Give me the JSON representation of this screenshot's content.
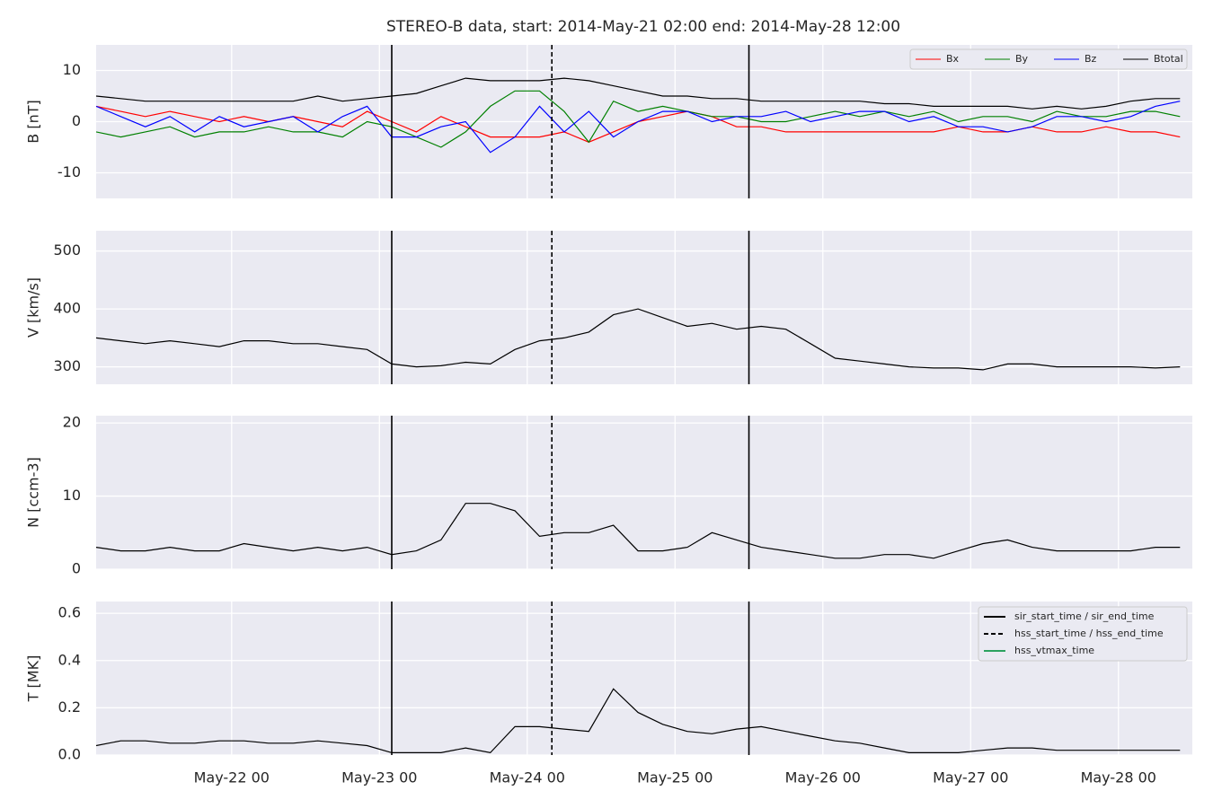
{
  "chart_data": [
    {
      "type": "line",
      "title": "STEREO-B data, start: 2014-May-21 02:00  end: 2014-May-28 12:00",
      "ylabel": "B [nT]",
      "x": [
        "May-21 02",
        "May-21 06",
        "May-21 10",
        "May-21 14",
        "May-21 18",
        "May-21 22",
        "May-22 02",
        "May-22 06",
        "May-22 10",
        "May-22 14",
        "May-22 18",
        "May-22 22",
        "May-23 02",
        "May-23 06",
        "May-23 10",
        "May-23 14",
        "May-23 18",
        "May-23 22",
        "May-24 02",
        "May-24 06",
        "May-24 10",
        "May-24 14",
        "May-24 18",
        "May-24 22",
        "May-25 02",
        "May-25 06",
        "May-25 10",
        "May-25 14",
        "May-25 18",
        "May-25 22",
        "May-26 02",
        "May-26 06",
        "May-26 10",
        "May-26 14",
        "May-26 18",
        "May-26 22",
        "May-27 02",
        "May-27 06",
        "May-27 10",
        "May-27 14",
        "May-27 18",
        "May-27 22",
        "May-28 02",
        "May-28 06",
        "May-28 10"
      ],
      "series": [
        {
          "name": "Bx",
          "color": "#ff0000",
          "values": [
            3,
            2,
            1,
            2,
            1,
            0,
            1,
            0,
            1,
            0,
            -1,
            2,
            0,
            -2,
            1,
            -1,
            -3,
            -3,
            -3,
            -2,
            -4,
            -2,
            0,
            1,
            2,
            1,
            -1,
            -1,
            -2,
            -2,
            -2,
            -2,
            -2,
            -2,
            -2,
            -1,
            -2,
            -2,
            -1,
            -2,
            -2,
            -1,
            -2,
            -2,
            -3
          ]
        },
        {
          "name": "By",
          "color": "#008000",
          "values": [
            -2,
            -3,
            -2,
            -1,
            -3,
            -2,
            -2,
            -1,
            -2,
            -2,
            -3,
            0,
            -1,
            -3,
            -5,
            -2,
            3,
            6,
            6,
            2,
            -4,
            4,
            2,
            3,
            2,
            1,
            1,
            0,
            0,
            1,
            2,
            1,
            2,
            1,
            2,
            0,
            1,
            1,
            0,
            2,
            1,
            1,
            2,
            2,
            1
          ]
        },
        {
          "name": "Bz",
          "color": "#0000ff",
          "values": [
            3,
            1,
            -1,
            1,
            -2,
            1,
            -1,
            0,
            1,
            -2,
            1,
            3,
            -3,
            -3,
            -1,
            0,
            -6,
            -3,
            3,
            -2,
            2,
            -3,
            0,
            2,
            2,
            0,
            1,
            1,
            2,
            0,
            1,
            2,
            2,
            0,
            1,
            -1,
            -1,
            -2,
            -1,
            1,
            1,
            0,
            1,
            3,
            4
          ]
        },
        {
          "name": "Btotal",
          "color": "#000000",
          "values": [
            5,
            4.5,
            4,
            4,
            4,
            4,
            4,
            4,
            4,
            5,
            4,
            4.5,
            5,
            5.5,
            7,
            8.5,
            8,
            8,
            8,
            8.5,
            8,
            7,
            6,
            5,
            5,
            4.5,
            4.5,
            4,
            4,
            4,
            4,
            4,
            3.5,
            3.5,
            3,
            3,
            3,
            3,
            2.5,
            3,
            2.5,
            3,
            4,
            4.5,
            4.5
          ]
        }
      ],
      "xlim": [
        "May-21 02",
        "May-28 12"
      ],
      "xticks": [
        "May-22 00",
        "May-23 00",
        "May-24 00",
        "May-25 00",
        "May-26 00",
        "May-27 00",
        "May-28 00"
      ],
      "ylim": [
        -15,
        15
      ],
      "yticks": [
        -10,
        0,
        10
      ],
      "grid": true,
      "legend": "upper right"
    },
    {
      "type": "line",
      "ylabel": "V [km/s]",
      "x": [
        "May-21 02",
        "May-21 06",
        "May-21 10",
        "May-21 14",
        "May-21 18",
        "May-21 22",
        "May-22 02",
        "May-22 06",
        "May-22 10",
        "May-22 14",
        "May-22 18",
        "May-22 22",
        "May-23 02",
        "May-23 06",
        "May-23 10",
        "May-23 14",
        "May-23 18",
        "May-23 22",
        "May-24 02",
        "May-24 06",
        "May-24 10",
        "May-24 14",
        "May-24 18",
        "May-24 22",
        "May-25 02",
        "May-25 06",
        "May-25 10",
        "May-25 14",
        "May-25 18",
        "May-25 22",
        "May-26 02",
        "May-26 06",
        "May-26 10",
        "May-26 14",
        "May-26 18",
        "May-26 22",
        "May-27 02",
        "May-27 06",
        "May-27 10",
        "May-27 14",
        "May-27 18",
        "May-27 22",
        "May-28 02",
        "May-28 06",
        "May-28 10"
      ],
      "series": [
        {
          "name": "V",
          "color": "#000000",
          "values": [
            350,
            345,
            340,
            345,
            340,
            335,
            345,
            345,
            340,
            340,
            335,
            330,
            305,
            300,
            302,
            308,
            305,
            330,
            345,
            350,
            360,
            390,
            400,
            385,
            370,
            375,
            365,
            370,
            365,
            340,
            315,
            310,
            305,
            300,
            298,
            298,
            295,
            305,
            305,
            300,
            300,
            300,
            300,
            298,
            300
          ]
        }
      ],
      "xlim": [
        "May-21 02",
        "May-28 12"
      ],
      "xticks": [
        "May-22 00",
        "May-23 00",
        "May-24 00",
        "May-25 00",
        "May-26 00",
        "May-27 00",
        "May-28 00"
      ],
      "ylim": [
        270,
        535
      ],
      "yticks": [
        300,
        400,
        500
      ],
      "grid": true
    },
    {
      "type": "line",
      "ylabel": "N [ccm-3]",
      "x": [
        "May-21 02",
        "May-21 06",
        "May-21 10",
        "May-21 14",
        "May-21 18",
        "May-21 22",
        "May-22 02",
        "May-22 06",
        "May-22 10",
        "May-22 14",
        "May-22 18",
        "May-22 22",
        "May-23 02",
        "May-23 06",
        "May-23 10",
        "May-23 14",
        "May-23 18",
        "May-23 22",
        "May-24 02",
        "May-24 06",
        "May-24 10",
        "May-24 14",
        "May-24 18",
        "May-24 22",
        "May-25 02",
        "May-25 06",
        "May-25 10",
        "May-25 14",
        "May-25 18",
        "May-25 22",
        "May-26 02",
        "May-26 06",
        "May-26 10",
        "May-26 14",
        "May-26 18",
        "May-26 22",
        "May-27 02",
        "May-27 06",
        "May-27 10",
        "May-27 14",
        "May-27 18",
        "May-27 22",
        "May-28 02",
        "May-28 06",
        "May-28 10"
      ],
      "series": [
        {
          "name": "N",
          "color": "#000000",
          "values": [
            3,
            2.5,
            2.5,
            3,
            2.5,
            2.5,
            3.5,
            3,
            2.5,
            3,
            2.5,
            3,
            2,
            2.5,
            4,
            9,
            9,
            8,
            4.5,
            5,
            5,
            6,
            2.5,
            2.5,
            3,
            5,
            4,
            3,
            2.5,
            2,
            1.5,
            1.5,
            2,
            2,
            1.5,
            2.5,
            3.5,
            4,
            3,
            2.5,
            2.5,
            2.5,
            2.5,
            3,
            3
          ]
        }
      ],
      "xlim": [
        "May-21 02",
        "May-28 12"
      ],
      "xticks": [
        "May-22 00",
        "May-23 00",
        "May-24 00",
        "May-25 00",
        "May-26 00",
        "May-27 00",
        "May-28 00"
      ],
      "ylim": [
        0,
        21
      ],
      "yticks": [
        0,
        10,
        20
      ],
      "grid": true
    },
    {
      "type": "line",
      "ylabel": "T [MK]",
      "x": [
        "May-21 02",
        "May-21 06",
        "May-21 10",
        "May-21 14",
        "May-21 18",
        "May-21 22",
        "May-22 02",
        "May-22 06",
        "May-22 10",
        "May-22 14",
        "May-22 18",
        "May-22 22",
        "May-23 02",
        "May-23 06",
        "May-23 10",
        "May-23 14",
        "May-23 18",
        "May-23 22",
        "May-24 02",
        "May-24 06",
        "May-24 10",
        "May-24 14",
        "May-24 18",
        "May-24 22",
        "May-25 02",
        "May-25 06",
        "May-25 10",
        "May-25 14",
        "May-25 18",
        "May-25 22",
        "May-26 02",
        "May-26 06",
        "May-26 10",
        "May-26 14",
        "May-26 18",
        "May-26 22",
        "May-27 02",
        "May-27 06",
        "May-27 10",
        "May-27 14",
        "May-27 18",
        "May-27 22",
        "May-28 02",
        "May-28 06",
        "May-28 10"
      ],
      "series": [
        {
          "name": "T",
          "color": "#000000",
          "values": [
            0.04,
            0.06,
            0.06,
            0.05,
            0.05,
            0.06,
            0.06,
            0.05,
            0.05,
            0.06,
            0.05,
            0.04,
            0.01,
            0.01,
            0.01,
            0.03,
            0.01,
            0.12,
            0.12,
            0.11,
            0.1,
            0.28,
            0.18,
            0.13,
            0.1,
            0.09,
            0.11,
            0.12,
            0.1,
            0.08,
            0.06,
            0.05,
            0.03,
            0.01,
            0.01,
            0.01,
            0.02,
            0.03,
            0.03,
            0.02,
            0.02,
            0.02,
            0.02,
            0.02,
            0.02
          ]
        }
      ],
      "xlim": [
        "May-21 02",
        "May-28 12"
      ],
      "xticks": [
        "May-22 00",
        "May-23 00",
        "May-24 00",
        "May-25 00",
        "May-26 00",
        "May-27 00",
        "May-28 00"
      ],
      "ylim": [
        0,
        0.65
      ],
      "yticks": [
        {
          "value": 0,
          "label": "0.0"
        },
        0.2,
        0.4,
        0.6
      ],
      "grid": true,
      "legend": "upper right",
      "markers": [
        {
          "name": "sir_start_time / sir_end_time",
          "color": "#000000",
          "style": "solid",
          "x": [
            "May-23 02",
            "May-25 12"
          ]
        },
        {
          "name": "hss_start_time / hss_end_time",
          "color": "#000000",
          "style": "dashed",
          "x": [
            "May-24 04"
          ]
        },
        {
          "name": "hss_vtmax_time",
          "color": "#2ca25f",
          "style": "solid",
          "x": []
        }
      ]
    }
  ]
}
